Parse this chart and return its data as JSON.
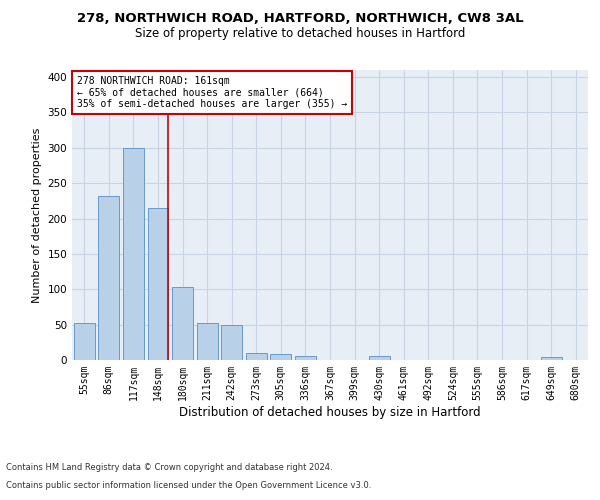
{
  "title": "278, NORTHWICH ROAD, HARTFORD, NORTHWICH, CW8 3AL",
  "subtitle": "Size of property relative to detached houses in Hartford",
  "xlabel": "Distribution of detached houses by size in Hartford",
  "ylabel": "Number of detached properties",
  "categories": [
    "55sqm",
    "86sqm",
    "117sqm",
    "148sqm",
    "180sqm",
    "211sqm",
    "242sqm",
    "273sqm",
    "305sqm",
    "336sqm",
    "367sqm",
    "399sqm",
    "430sqm",
    "461sqm",
    "492sqm",
    "524sqm",
    "555sqm",
    "586sqm",
    "617sqm",
    "649sqm",
    "680sqm"
  ],
  "values": [
    53,
    232,
    300,
    215,
    103,
    52,
    49,
    10,
    9,
    6,
    0,
    0,
    5,
    0,
    0,
    0,
    0,
    0,
    0,
    4,
    0
  ],
  "bar_color": "#b8d0e8",
  "bar_edge_color": "#6699cc",
  "grid_color": "#c8d4e4",
  "bg_color": "#e8eef6",
  "annotation_line1": "278 NORTHWICH ROAD: 161sqm",
  "annotation_line2": "← 65% of detached houses are smaller (664)",
  "annotation_line3": "35% of semi-detached houses are larger (355) →",
  "annotation_box_color": "white",
  "annotation_box_edge": "#cc0000",
  "vline_color": "#cc0000",
  "vline_x": 3.42,
  "ylim": [
    0,
    410
  ],
  "yticks": [
    0,
    50,
    100,
    150,
    200,
    250,
    300,
    350,
    400
  ],
  "footnote_line1": "Contains HM Land Registry data © Crown copyright and database right 2024.",
  "footnote_line2": "Contains public sector information licensed under the Open Government Licence v3.0.",
  "title_fontsize": 9.5,
  "subtitle_fontsize": 8.5,
  "xlabel_fontsize": 8.5,
  "ylabel_fontsize": 8,
  "tick_fontsize": 7,
  "annotation_fontsize": 7,
  "footnote_fontsize": 6
}
